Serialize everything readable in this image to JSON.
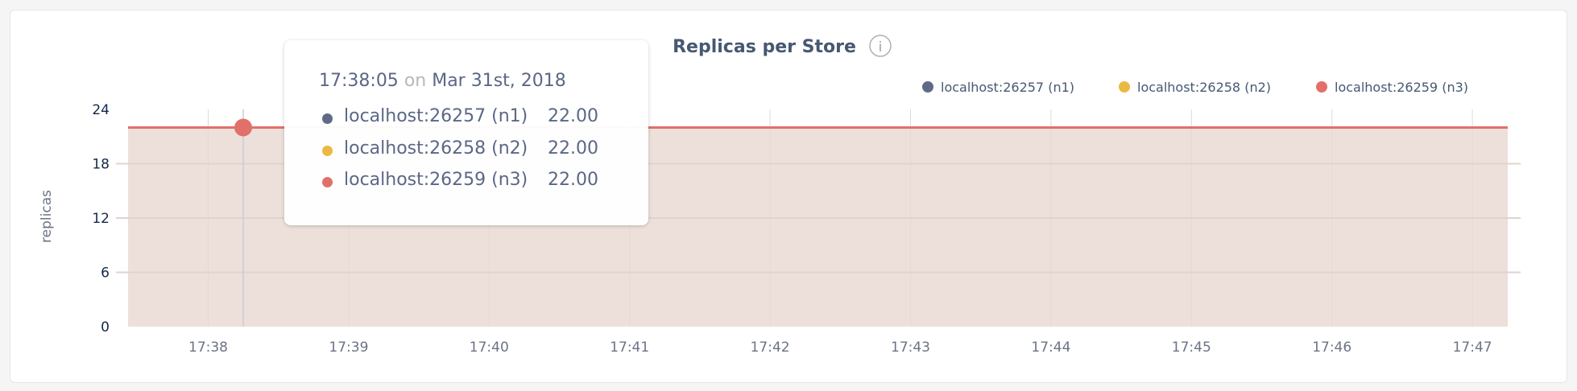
{
  "chart_data": {
    "type": "area",
    "title": "Replicas per Store",
    "info_icon": "info-icon",
    "ylabel": "replicas",
    "xlabel": "",
    "ylim": [
      0,
      24
    ],
    "yticks": [
      "0",
      "6",
      "12",
      "18",
      "24"
    ],
    "xticks": [
      "17:38",
      "17:39",
      "17:40",
      "17:41",
      "17:42",
      "17:43",
      "17:44",
      "17:45",
      "17:46",
      "17:47"
    ],
    "grid": true,
    "legend_position": "top-right",
    "series": [
      {
        "name": "localhost:26257 (n1)",
        "color": "#5f6b86",
        "value": 22
      },
      {
        "name": "localhost:26258 (n2)",
        "color": "#eab942",
        "value": 22
      },
      {
        "name": "localhost:26259 (n3)",
        "color": "#e2706a",
        "value": 22
      }
    ],
    "tooltip": {
      "time": "17:38:05",
      "on": "on",
      "date": "Mar 31st, 2018",
      "rows": [
        {
          "name": "localhost:26257 (n1)",
          "value": "22.00"
        },
        {
          "name": "localhost:26258 (n2)",
          "value": "22.00"
        },
        {
          "name": "localhost:26259 (n3)",
          "value": "22.00"
        }
      ]
    }
  }
}
